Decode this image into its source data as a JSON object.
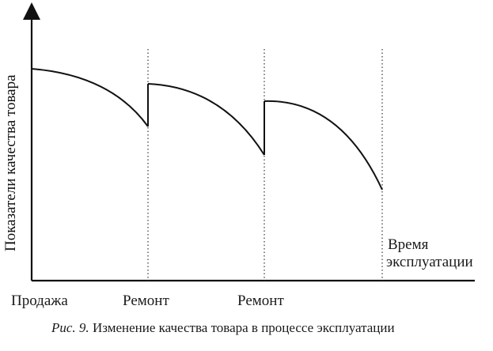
{
  "chart_data": {
    "type": "line",
    "ylabel": "Показатели качества товара",
    "xlabel_lines": [
      "Время",
      "эксплуатации"
    ],
    "x_events": [
      "Продажа",
      "Ремонт",
      "Ремонт"
    ],
    "segments": [
      {
        "start": "Продажа",
        "end": "Ремонт",
        "y_start": 0.88,
        "y_end": 0.64
      },
      {
        "start": "Ремонт",
        "end": "Ремонт",
        "y_start": 0.81,
        "y_end": 0.54
      },
      {
        "start": "Ремонт",
        "end": "",
        "y_start": 0.73,
        "y_end": 0.38
      }
    ],
    "grid": false
  },
  "caption": {
    "figure_number": "Рис. 9.",
    "text": "Изменение качества товара в процессе эксплуатации"
  }
}
